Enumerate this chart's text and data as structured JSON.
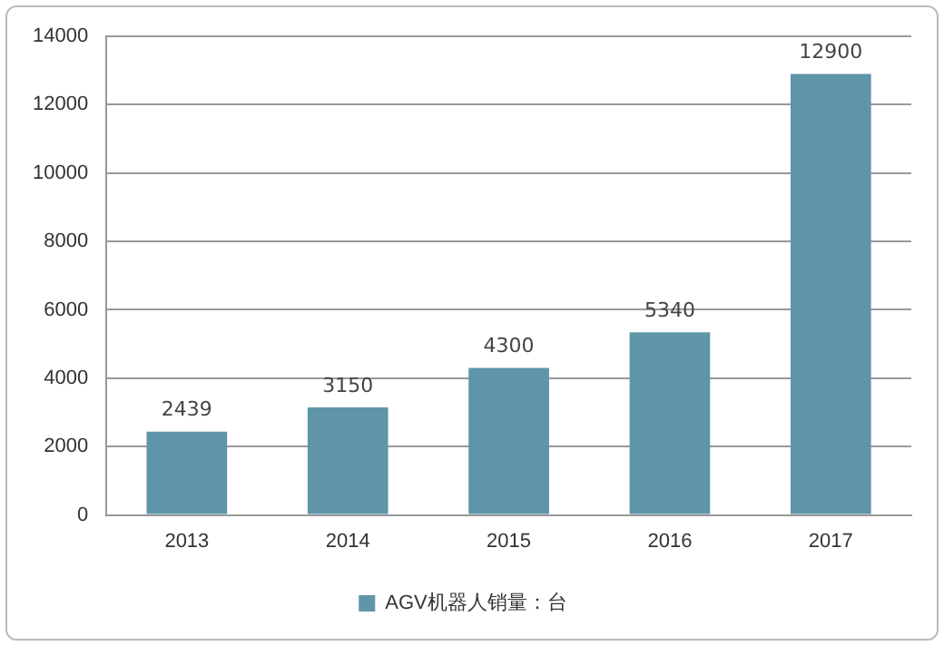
{
  "chart_data": {
    "type": "bar",
    "categories": [
      "2013",
      "2014",
      "2015",
      "2016",
      "2017"
    ],
    "series": [
      {
        "name": "AGV机器人销量：台",
        "color": "#5f95a8",
        "values": [
          2439,
          3150,
          4300,
          5340,
          12900
        ]
      }
    ],
    "ylim": [
      0,
      14000
    ],
    "yticks": [
      0,
      2000,
      4000,
      6000,
      8000,
      10000,
      12000,
      14000
    ],
    "grid": "y",
    "legend": "bottom",
    "data_labels": true
  }
}
